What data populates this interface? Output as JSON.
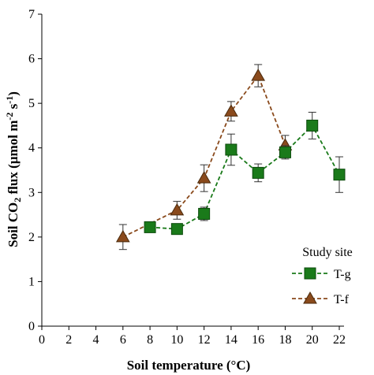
{
  "chart_data": {
    "type": "line",
    "xlabel": "Soil temperature (°C)",
    "ylabel_parts": {
      "before": "Soil CO",
      "sub2": "2",
      "mid": " flux (µmol m",
      "sup1": "-2",
      "mid2": " s",
      "sup2": "-1",
      "after": ")"
    },
    "xlim": [
      0,
      22
    ],
    "ylim": [
      0,
      7
    ],
    "xticks": [
      0,
      2,
      4,
      6,
      8,
      10,
      12,
      14,
      16,
      18,
      20,
      22
    ],
    "yticks": [
      0,
      1,
      2,
      3,
      4,
      5,
      6,
      7
    ],
    "grid": false,
    "legend": {
      "title": "Study site",
      "placement": "bottom-right"
    },
    "series": [
      {
        "name": "T-g",
        "marker": "square",
        "color": "#1a7a1a",
        "edge": "#0c4a0c",
        "points": [
          {
            "x": 8,
            "y": 2.22,
            "err": 0.05
          },
          {
            "x": 10,
            "y": 2.18,
            "err": 0.1
          },
          {
            "x": 12,
            "y": 2.52,
            "err": 0.15
          },
          {
            "x": 14,
            "y": 3.96,
            "err": 0.35
          },
          {
            "x": 16,
            "y": 3.44,
            "err": 0.2
          },
          {
            "x": 18,
            "y": 3.9,
            "err": 0.15
          },
          {
            "x": 20,
            "y": 4.5,
            "err": 0.3
          },
          {
            "x": 22,
            "y": 3.4,
            "err": 0.4
          }
        ]
      },
      {
        "name": "T-f",
        "marker": "triangle",
        "color": "#8a4a1c",
        "edge": "#4a2a0c",
        "points": [
          {
            "x": 6,
            "y": 2.0,
            "err": 0.28
          },
          {
            "x": 10,
            "y": 2.6,
            "err": 0.2
          },
          {
            "x": 12,
            "y": 3.32,
            "err": 0.3
          },
          {
            "x": 14,
            "y": 4.82,
            "err": 0.22
          },
          {
            "x": 16,
            "y": 5.62,
            "err": 0.25
          },
          {
            "x": 18,
            "y": 4.06,
            "err": 0.22
          }
        ]
      }
    ]
  }
}
